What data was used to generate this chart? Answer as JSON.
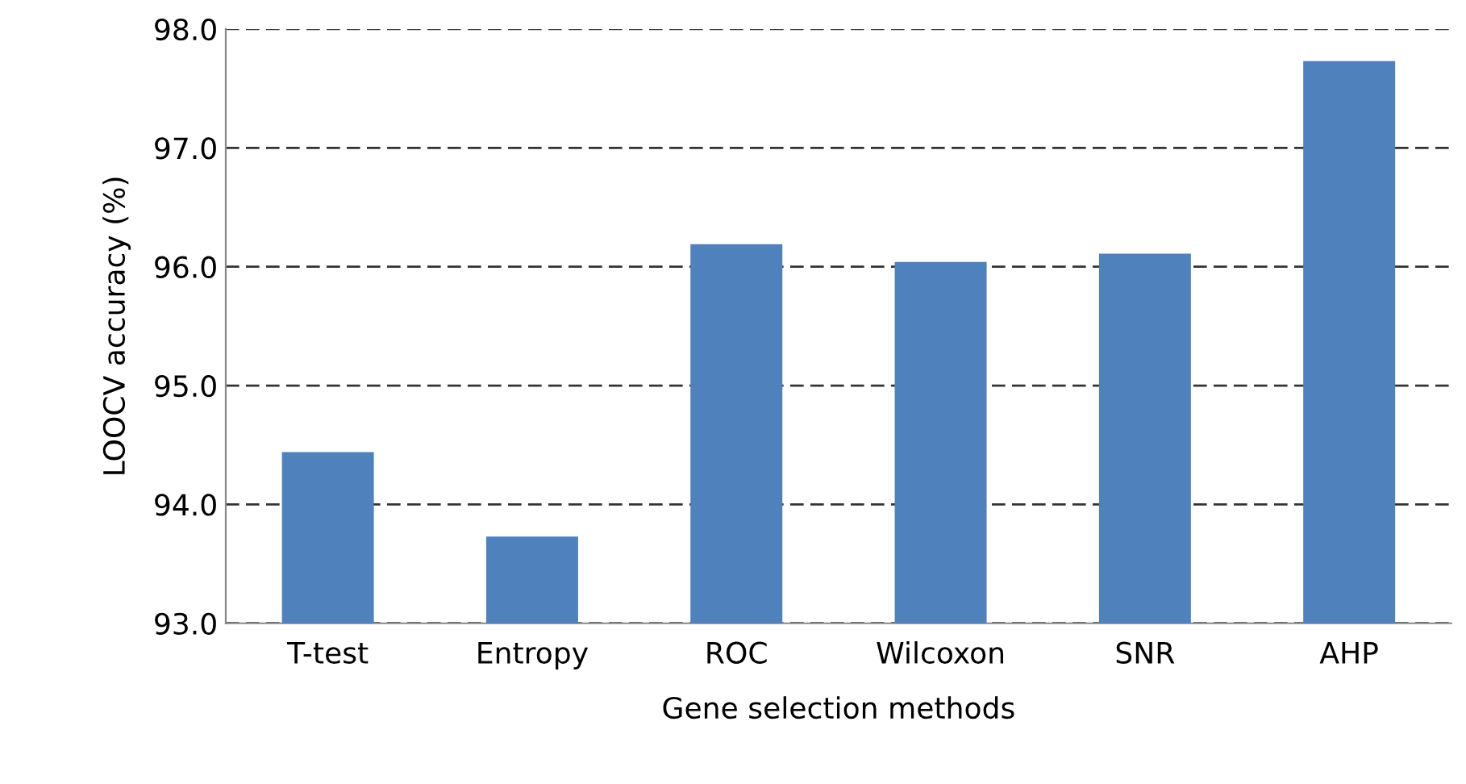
{
  "chart_data": {
    "type": "bar",
    "xlabel": "Gene selection methods",
    "ylabel": "LOOCV accuracy (%)",
    "categories": [
      "T-test",
      "Entropy",
      "ROC",
      "Wilcoxon",
      "SNR",
      "AHP"
    ],
    "values": [
      94.44,
      93.73,
      96.19,
      96.04,
      96.11,
      97.73
    ],
    "color": "#4f81bd",
    "ylim": [
      93,
      98
    ],
    "yticks": [
      {
        "value": 93,
        "label": "93.0"
      },
      {
        "value": 94,
        "label": "94.0"
      },
      {
        "value": 95,
        "label": "95.0"
      },
      {
        "value": 96,
        "label": "96.0"
      },
      {
        "value": 97,
        "label": "97.0"
      },
      {
        "value": 98,
        "label": "98.0"
      }
    ],
    "grid": "y",
    "line_style": "dashed"
  }
}
